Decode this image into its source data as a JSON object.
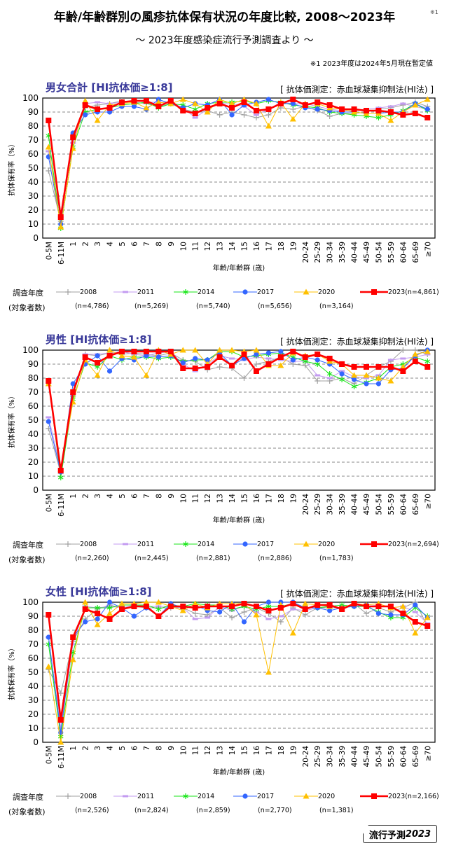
{
  "header": {
    "title": "年齢/年齢群別の風疹抗体保有状況の年度比較, 2008～2023年",
    "title_note": "※1",
    "subtitle": "～ 2023年度感染症流行予測調査より ～",
    "footnote": "※1  2023年度は2024年5月現在暫定値"
  },
  "colors": {
    "2008": "#a0a0a0",
    "2011": "#c39bf0",
    "2014": "#19e619",
    "2017": "#3366ff",
    "2020": "#ffc000",
    "2023": "#ff0000",
    "panel_title": "#3a3a9a"
  },
  "markers": {
    "2008": "plus",
    "2011": "dash",
    "2014": "asterisk",
    "2017": "circle",
    "2020": "triangle",
    "2023": "square"
  },
  "legend_head": {
    "year": "調査年度",
    "n": "(対象者数)"
  },
  "panels": [
    {
      "title": "男女合計 [HI抗体価≥1:8]",
      "method": "[ 抗体価測定：赤血球凝集抑制法(HI法) ]",
      "legend": [
        {
          "label": "2008",
          "n": "(n=4,786)"
        },
        {
          "label": "2011",
          "n": "(n=5,269)"
        },
        {
          "label": "2014",
          "n": "(n=5,740)"
        },
        {
          "label": "2017",
          "n": "(n=5,656)"
        },
        {
          "label": "2020",
          "n": "(n=3,164)"
        },
        {
          "label": "2023(n=4,861)",
          "n": ""
        }
      ]
    },
    {
      "title": "男性 [HI抗体価≥1:8]",
      "method": "[ 抗体価測定：赤血球凝集抑制法(HI法) ]",
      "legend": [
        {
          "label": "2008",
          "n": "(n=2,260)"
        },
        {
          "label": "2011",
          "n": "(n=2,445)"
        },
        {
          "label": "2014",
          "n": "(n=2,881)"
        },
        {
          "label": "2017",
          "n": "(n=2,886)"
        },
        {
          "label": "2020",
          "n": "(n=1,783)"
        },
        {
          "label": "2023(n=2,694)",
          "n": ""
        }
      ]
    },
    {
      "title": "女性 [HI抗体価≥1:8]",
      "method": "[ 抗体価測定：赤血球凝集抑制法(HI法) ]",
      "legend": [
        {
          "label": "2008",
          "n": "(n=2,526)"
        },
        {
          "label": "2011",
          "n": "(n=2,824)"
        },
        {
          "label": "2014",
          "n": "(n=2,859)"
        },
        {
          "label": "2017",
          "n": "(n=2,770)"
        },
        {
          "label": "2020",
          "n": "(n=1,381)"
        },
        {
          "label": "2023(n=2,166)",
          "n": ""
        }
      ]
    }
  ],
  "chart_data": [
    {
      "type": "line",
      "title": "男女合計 [HI抗体価≥1:8]",
      "xlabel": "年齢/年齢群 (歳)",
      "ylabel": "抗体保有率（%）",
      "ylim": [
        0,
        100
      ],
      "yticks": [
        0,
        10,
        20,
        30,
        40,
        50,
        60,
        70,
        80,
        90,
        100
      ],
      "grid": true,
      "categories": [
        "0-5M",
        "6-11M",
        "1",
        "2",
        "3",
        "4",
        "5",
        "6",
        "7",
        "8",
        "9",
        "10",
        "11",
        "12",
        "13",
        "14",
        "15",
        "16",
        "17",
        "18",
        "19",
        "20-24",
        "25-29",
        "30-34",
        "35-39",
        "40-44",
        "45-49",
        "50-54",
        "55-59",
        "60-64",
        "65-69",
        "≥70"
      ],
      "series": [
        {
          "name": "2008",
          "values": [
            48,
            12,
            70,
            93,
            95,
            96,
            98,
            97,
            96,
            94,
            96,
            92,
            90,
            91,
            88,
            90,
            88,
            86,
            88,
            93,
            92,
            94,
            91,
            87,
            89,
            89,
            90,
            92,
            93,
            95,
            97,
            94
          ]
        },
        {
          "name": "2011",
          "values": [
            62,
            15,
            68,
            96,
            97,
            96,
            97,
            98,
            97,
            97,
            97,
            93,
            86,
            92,
            96,
            96,
            94,
            88,
            92,
            97,
            96,
            96,
            94,
            92,
            91,
            91,
            92,
            93,
            94,
            96,
            94,
            92
          ]
        },
        {
          "name": "2014",
          "values": [
            73,
            7,
            65,
            90,
            92,
            93,
            95,
            96,
            97,
            93,
            96,
            95,
            92,
            96,
            97,
            97,
            98,
            96,
            98,
            97,
            95,
            94,
            93,
            90,
            89,
            88,
            87,
            86,
            88,
            91,
            96,
            91
          ]
        },
        {
          "name": "2017",
          "values": [
            58,
            10,
            75,
            88,
            90,
            90,
            94,
            94,
            92,
            99,
            96,
            93,
            96,
            95,
            99,
            88,
            95,
            97,
            99,
            96,
            96,
            93,
            92,
            91,
            90,
            90,
            89,
            89,
            90,
            90,
            96,
            92
          ]
        },
        {
          "name": "2020",
          "values": [
            65,
            8,
            64,
            98,
            84,
            95,
            96,
            97,
            93,
            97,
            96,
            99,
            96,
            90,
            99,
            96,
            99,
            96,
            80,
            97,
            85,
            96,
            96,
            93,
            92,
            90,
            89,
            89,
            84,
            90,
            95,
            99
          ]
        },
        {
          "name": "2023",
          "values": [
            84,
            15,
            72,
            95,
            92,
            93,
            97,
            98,
            98,
            94,
            98,
            91,
            89,
            93,
            96,
            93,
            97,
            91,
            92,
            96,
            99,
            95,
            97,
            95,
            92,
            92,
            91,
            91,
            90,
            88,
            89,
            86
          ]
        }
      ]
    },
    {
      "type": "line",
      "title": "男性 [HI抗体価≥1:8]",
      "xlabel": "年齢/年齢群 (歳)",
      "ylabel": "抗体保有率（%）",
      "ylim": [
        0,
        100
      ],
      "yticks": [
        0,
        10,
        20,
        30,
        40,
        50,
        60,
        70,
        80,
        90,
        100
      ],
      "grid": true,
      "categories": [
        "0-5M",
        "6-11M",
        "1",
        "2",
        "3",
        "4",
        "5",
        "6",
        "7",
        "8",
        "9",
        "10",
        "11",
        "12",
        "13",
        "14",
        "15",
        "16",
        "17",
        "18",
        "19",
        "20-24",
        "25-29",
        "30-34",
        "35-39",
        "40-44",
        "45-49",
        "50-54",
        "55-59",
        "60-64",
        "65-69",
        "≥70"
      ],
      "series": [
        {
          "name": "2008",
          "values": [
            44,
            12,
            67,
            97,
            96,
            98,
            97,
            98,
            97,
            96,
            98,
            93,
            92,
            86,
            88,
            87,
            80,
            90,
            92,
            95,
            90,
            89,
            78,
            78,
            80,
            76,
            82,
            88,
            92,
            100,
            100,
            97
          ]
        },
        {
          "name": "2011",
          "values": [
            52,
            15,
            68,
            97,
            97,
            98,
            99,
            97,
            96,
            98,
            99,
            90,
            85,
            90,
            96,
            94,
            93,
            95,
            94,
            93,
            92,
            92,
            82,
            80,
            85,
            81,
            80,
            82,
            93,
            94,
            95,
            97
          ]
        },
        {
          "name": "2014",
          "values": [
            77,
            9,
            65,
            91,
            88,
            96,
            93,
            95,
            95,
            94,
            95,
            92,
            93,
            93,
            99,
            99,
            95,
            96,
            97,
            98,
            95,
            92,
            90,
            83,
            79,
            74,
            77,
            80,
            88,
            90,
            95,
            92
          ]
        },
        {
          "name": "2017",
          "values": [
            49,
            13,
            76,
            90,
            96,
            85,
            94,
            93,
            96,
            95,
            96,
            91,
            94,
            93,
            98,
            89,
            94,
            97,
            98,
            99,
            93,
            95,
            93,
            90,
            83,
            79,
            76,
            76,
            86,
            87,
            96,
            100
          ]
        },
        {
          "name": "2020",
          "values": [
            76,
            15,
            63,
            93,
            82,
            100,
            96,
            95,
            82,
            100,
            97,
            100,
            100,
            90,
            100,
            100,
            99,
            100,
            89,
            89,
            98,
            96,
            97,
            92,
            90,
            82,
            82,
            80,
            78,
            88,
            97,
            99
          ]
        },
        {
          "name": "2023",
          "values": [
            78,
            14,
            70,
            95,
            91,
            96,
            99,
            99,
            99,
            99,
            99,
            87,
            87,
            88,
            95,
            89,
            97,
            85,
            90,
            95,
            99,
            95,
            97,
            94,
            90,
            88,
            88,
            88,
            88,
            85,
            92,
            88
          ]
        }
      ]
    },
    {
      "type": "line",
      "title": "女性 [HI抗体価≥1:8]",
      "xlabel": "年齢/年齢群 (歳)",
      "ylabel": "抗体保有率（%）",
      "ylim": [
        0,
        100
      ],
      "yticks": [
        0,
        10,
        20,
        30,
        40,
        50,
        60,
        70,
        80,
        90,
        100
      ],
      "grid": true,
      "categories": [
        "0-5M",
        "6-11M",
        "1",
        "2",
        "3",
        "4",
        "5",
        "6",
        "7",
        "8",
        "9",
        "10",
        "11",
        "12",
        "13",
        "14",
        "15",
        "16",
        "17",
        "18",
        "19",
        "20-24",
        "25-29",
        "30-34",
        "35-39",
        "40-44",
        "45-49",
        "50-54",
        "55-59",
        "60-64",
        "65-69",
        "≥70"
      ],
      "series": [
        {
          "name": "2008",
          "values": [
            52,
            35,
            72,
            88,
            95,
            98,
            96,
            97,
            96,
            96,
            96,
            96,
            92,
            91,
            96,
            89,
            93,
            96,
            92,
            86,
            96,
            91,
            96,
            96,
            96,
            99,
            92,
            96,
            93,
            96,
            100,
            83
          ]
        },
        {
          "name": "2011",
          "values": [
            75,
            10,
            70,
            97,
            96,
            97,
            96,
            98,
            97,
            97,
            97,
            96,
            88,
            89,
            97,
            94,
            97,
            93,
            88,
            90,
            95,
            94,
            96,
            97,
            96,
            98,
            97,
            98,
            96,
            97,
            93,
            85
          ]
        },
        {
          "name": "2014",
          "values": [
            70,
            4,
            64,
            96,
            96,
            96,
            98,
            98,
            98,
            95,
            98,
            97,
            99,
            98,
            98,
            95,
            97,
            95,
            97,
            97,
            99,
            96,
            96,
            97,
            98,
            97,
            97,
            93,
            89,
            89,
            96,
            90
          ]
        },
        {
          "name": "2017",
          "values": [
            75,
            7,
            75,
            86,
            88,
            100,
            96,
            90,
            96,
            90,
            99,
            96,
            98,
            94,
            93,
            99,
            86,
            97,
            100,
            100,
            100,
            96,
            96,
            94,
            96,
            97,
            98,
            92,
            91,
            91,
            98,
            89
          ]
        },
        {
          "name": "2020",
          "values": [
            54,
            0,
            59,
            100,
            84,
            92,
            99,
            99,
            100,
            100,
            97,
            94,
            99,
            96,
            99,
            99,
            99,
            91,
            50,
            98,
            78,
            99,
            98,
            97,
            96,
            99,
            98,
            99,
            96,
            97,
            78,
            89
          ]
        },
        {
          "name": "2023",
          "values": [
            91,
            16,
            75,
            95,
            92,
            88,
            95,
            97,
            97,
            90,
            97,
            97,
            96,
            97,
            97,
            97,
            99,
            97,
            94,
            96,
            99,
            95,
            98,
            98,
            95,
            99,
            97,
            97,
            97,
            92,
            86,
            83
          ]
        }
      ]
    }
  ],
  "footer": {
    "logo_text": "流行予測",
    "logo_year": "2023"
  }
}
